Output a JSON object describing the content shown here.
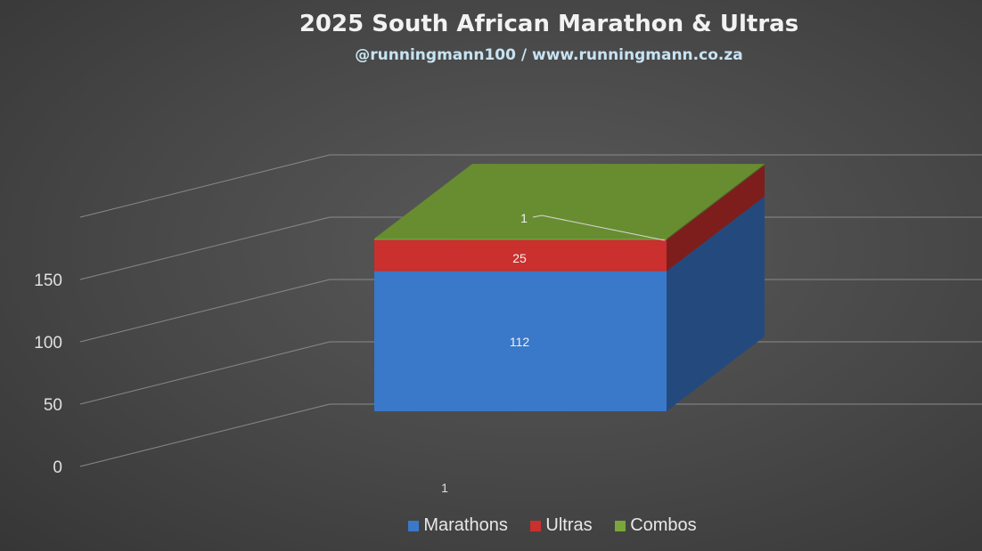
{
  "header": {
    "title": "2025 South African Marathon & Ultras",
    "subtitle": "@runningmann100 / www.runningmann.co.za"
  },
  "chart_data": {
    "type": "bar",
    "stacked": true,
    "three_d": true,
    "categories": [
      "1"
    ],
    "series": [
      {
        "name": "Marathons",
        "values": [
          112
        ],
        "color": "#3a78c9"
      },
      {
        "name": "Ultras",
        "values": [
          25
        ],
        "color": "#c9302e"
      },
      {
        "name": "Combos",
        "values": [
          1
        ],
        "color": "#7aa63a"
      }
    ],
    "data_labels": [
      "112",
      "25",
      "1"
    ],
    "y_ticks": [
      "0",
      "50",
      "100",
      "150"
    ],
    "ylim": [
      0,
      200
    ],
    "grid": true,
    "legend_position": "bottom"
  },
  "legend": {
    "items": [
      {
        "label": "Marathons",
        "color": "#3a78c9"
      },
      {
        "label": "Ultras",
        "color": "#c9302e"
      },
      {
        "label": "Combos",
        "color": "#7aa63a"
      }
    ]
  }
}
